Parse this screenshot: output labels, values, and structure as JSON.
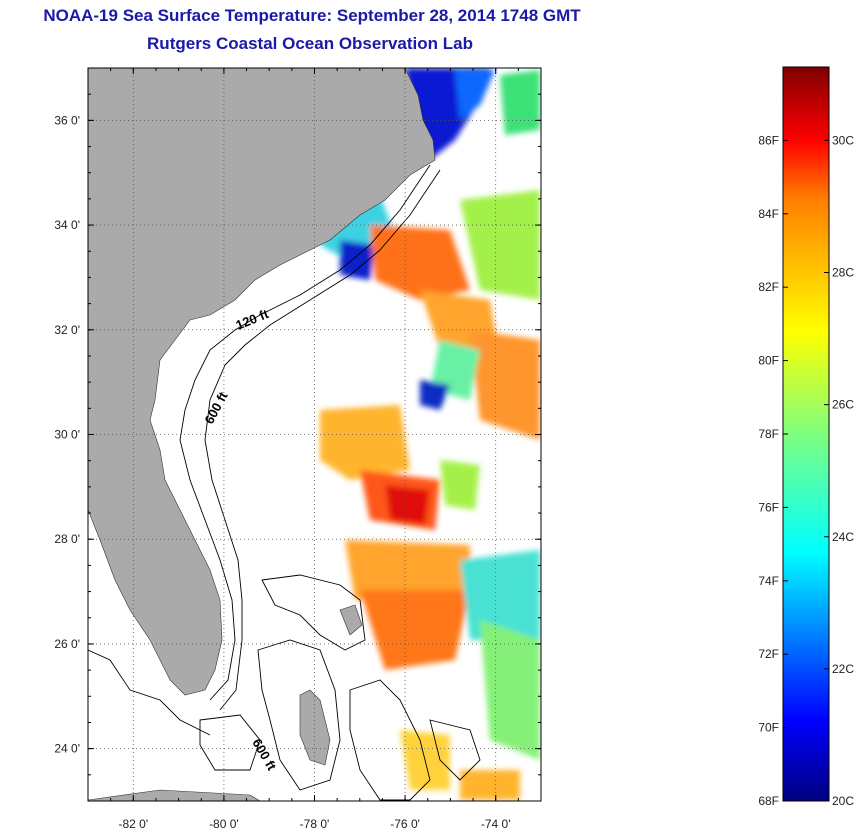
{
  "header": {
    "title": "NOAA-19 Sea Surface Temperature:  September 28, 2014 1748 GMT",
    "subtitle": "Rutgers Coastal Ocean Observation Lab"
  },
  "map": {
    "lon_range": [
      -83,
      -73
    ],
    "lat_range": [
      23,
      37
    ],
    "lon_ticks": [
      {
        "value": -82,
        "label": "-82 0'"
      },
      {
        "value": -80,
        "label": "-80 0'"
      },
      {
        "value": -78,
        "label": "-78 0'"
      },
      {
        "value": -76,
        "label": "-76 0'"
      },
      {
        "value": -74,
        "label": "-74 0'"
      }
    ],
    "lat_ticks": [
      {
        "value": 24,
        "label": "24 0'"
      },
      {
        "value": 26,
        "label": "26 0'"
      },
      {
        "value": 28,
        "label": "28 0'"
      },
      {
        "value": 30,
        "label": "30 0'"
      },
      {
        "value": 32,
        "label": "32 0'"
      },
      {
        "value": 34,
        "label": "34 0'"
      },
      {
        "value": 36,
        "label": "36 0'"
      }
    ],
    "contour_labels": [
      "120 ft",
      "600 ft",
      "600 ft"
    ],
    "colors": {
      "land": "#aaaaaa",
      "water_nodata": "#ffffff",
      "grid": "#555555"
    }
  },
  "colorbar": {
    "range_f": [
      68,
      88
    ],
    "fahrenheit_ticks": [
      "86F",
      "84F",
      "82F",
      "80F",
      "78F",
      "76F",
      "74F",
      "72F",
      "70F",
      "68F"
    ],
    "celsius_ticks": [
      "30C",
      "28C",
      "26C",
      "24C",
      "22C",
      "20C"
    ],
    "colormap": [
      "#00007f",
      "#0000ff",
      "#007fff",
      "#00ffff",
      "#7fff7f",
      "#ffff00",
      "#ff7f00",
      "#ff0000",
      "#7f0000"
    ]
  }
}
